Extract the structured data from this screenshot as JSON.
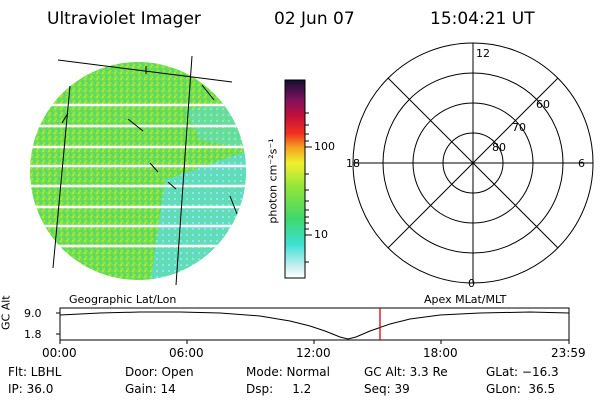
{
  "header": {
    "title": "Ultraviolet Imager",
    "date": "02 Jun 07",
    "time": "15:04:21 UT"
  },
  "colorbar": {
    "unit_label": "photon cm⁻²s⁻¹",
    "ticks": [
      "100",
      "10"
    ]
  },
  "polar": {
    "mlt_labels": [
      "12",
      "18",
      "6",
      "0"
    ],
    "lat_labels": [
      "60",
      "70",
      "80"
    ]
  },
  "timeline": {
    "left_title": "Geographic Lat/Lon",
    "right_title": "Apex MLat/MLT",
    "y_axis_label": "GC Alt",
    "y_ticks": [
      "9.0",
      "1.8"
    ],
    "x_ticks": [
      "00:00",
      "06:00",
      "12:00",
      "18:00",
      "23:59"
    ],
    "current_marker_time": "15:04"
  },
  "status": {
    "filter": "Flt: LBHL",
    "ip": "IP: 36.0",
    "door": "Door: Open",
    "gain": "Gain: 14",
    "mode": "Mode: Normal",
    "dsp": "Dsp:     1.2",
    "gc_alt": "GC Alt: 3.3 Re",
    "seq": "Seq: 39",
    "glat": "GLat: −16.3",
    "glon": "GLon:  36.5"
  },
  "colors": {
    "disk_main": "#6fe04a",
    "disk_alt": "#a8ea3a",
    "disk_cyan": "#4fe0d0",
    "marker": "#e00000"
  }
}
